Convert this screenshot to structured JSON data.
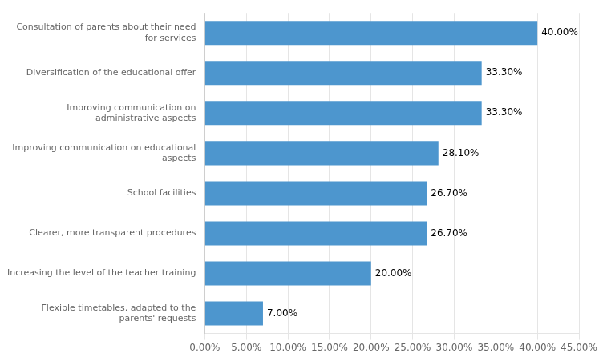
{
  "chart_data": {
    "type": "bar",
    "orientation": "horizontal",
    "categories": [
      "Consultation of parents about their need\nfor services",
      "Diversification of the educational offer",
      "Improving communication on\nadministrative aspects",
      "Improving communication on educational\naspects",
      "School facilities",
      "Clearer, more transparent procedures",
      "Increasing the level of the teacher training",
      "Flexible timetables, adapted to the\nparents' requests"
    ],
    "values": [
      40.0,
      33.3,
      33.3,
      28.1,
      26.7,
      26.7,
      20.0,
      7.0
    ],
    "value_labels": [
      "40.00%",
      "33.30%",
      "33.30%",
      "28.10%",
      "26.70%",
      "26.70%",
      "20.00%",
      "7.00%"
    ],
    "data_labels": true,
    "color": "#4d96ce",
    "xlim": [
      0,
      45
    ],
    "xticks": [
      {
        "value": 0,
        "label": "0.00%"
      },
      {
        "value": 5,
        "label": "5.00%"
      },
      {
        "value": 10,
        "label": "10.00%"
      },
      {
        "value": 15,
        "label": "15.00%"
      },
      {
        "value": 20,
        "label": "20.00%"
      },
      {
        "value": 25,
        "label": "25.00%"
      },
      {
        "value": 30,
        "label": "30.00%"
      },
      {
        "value": 35,
        "label": "35.00%"
      },
      {
        "value": 40,
        "label": "40.00%"
      },
      {
        "value": 45,
        "label": "45.00%"
      }
    ],
    "grid": true
  }
}
